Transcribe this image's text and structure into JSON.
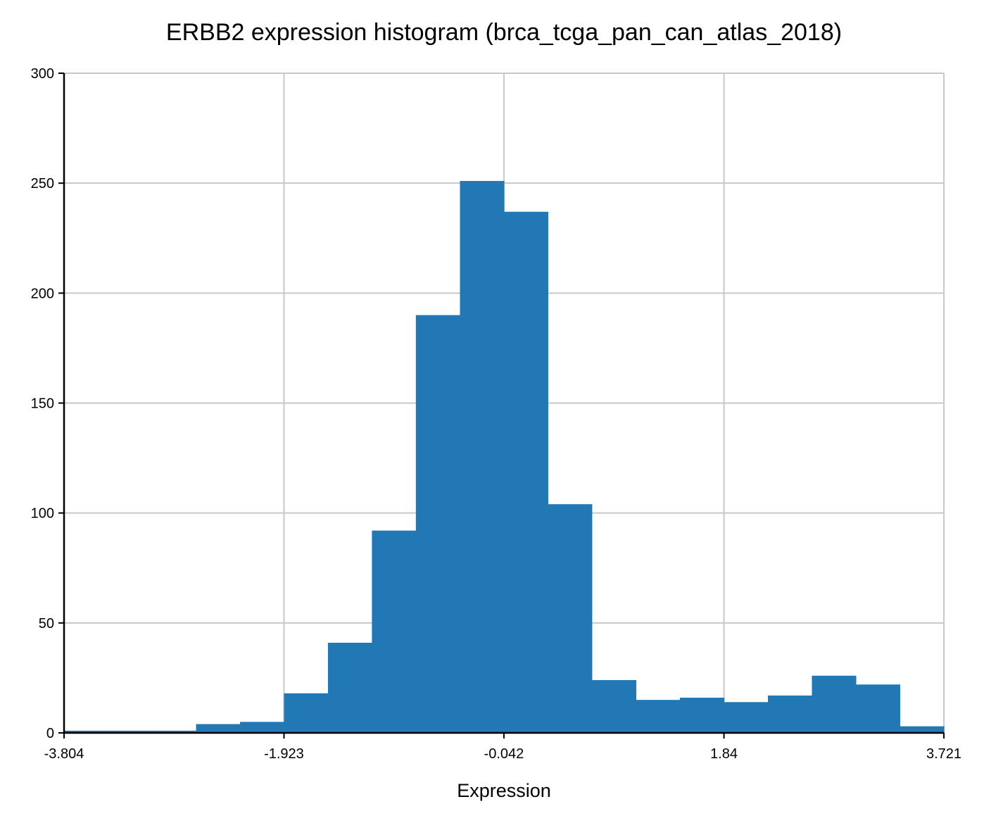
{
  "chart_data": {
    "type": "bar",
    "title": "ERBB2 expression histogram (brca_tcga_pan_can_atlas_2018)",
    "xlabel": "Expression",
    "ylabel": "",
    "xlim": [
      -3.804,
      3.721
    ],
    "ylim": [
      0,
      300
    ],
    "xticks": [
      "-3.804",
      "-1.923",
      "-0.042",
      "1.84",
      "3.721"
    ],
    "xtick_values": [
      -3.804,
      -1.923,
      -0.042,
      1.84,
      3.721
    ],
    "yticks": [
      0,
      50,
      100,
      150,
      200,
      250,
      300
    ],
    "bin_edges": [
      -3.804,
      -3.428,
      -3.051,
      -2.675,
      -2.299,
      -1.923,
      -1.547,
      -1.171,
      -0.795,
      -0.418,
      -0.042,
      0.334,
      0.71,
      1.087,
      1.463,
      1.84,
      2.216,
      2.592,
      2.968,
      3.344,
      3.721
    ],
    "counts": [
      1,
      1,
      1,
      4,
      5,
      18,
      41,
      92,
      190,
      251,
      237,
      104,
      24,
      15,
      16,
      14,
      17,
      26,
      22,
      3
    ],
    "grid": true,
    "bar_color": "#2178b4",
    "grid_color": "#c8c8c8"
  }
}
